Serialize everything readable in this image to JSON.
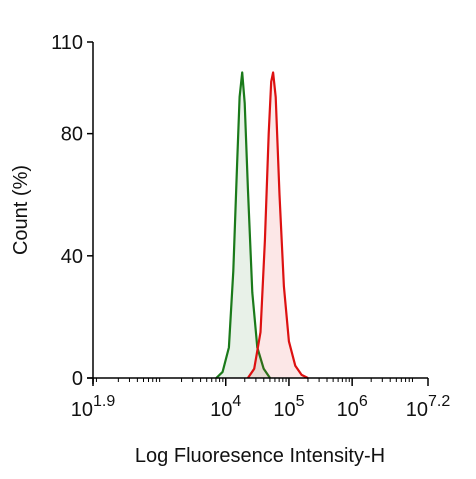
{
  "chart_data": {
    "type": "histogram-overlay",
    "xlabel": "Log Fluoresence Intensity-H",
    "ylabel": "Count  (%)",
    "xscale": "log",
    "log_base_label": "10",
    "xlim": [
      1.9,
      7.2
    ],
    "xticks": [
      {
        "value": 1.9,
        "label": "10"
      },
      {
        "value": 4,
        "label": "10"
      },
      {
        "value": 5,
        "label": "10"
      },
      {
        "value": 6,
        "label": "10"
      },
      {
        "value": 7.2,
        "label": "10"
      }
    ],
    "minor_ticks": true,
    "ylim": [
      0,
      110
    ],
    "yticks": [
      0,
      40,
      80,
      110
    ],
    "series": [
      {
        "color": "#1a7a1a",
        "fill": "rgba(26,122,26,0.10)",
        "x": [
          3.85,
          3.95,
          4.05,
          4.12,
          4.18,
          4.22,
          4.26,
          4.3,
          4.35,
          4.42,
          4.5,
          4.6,
          4.7
        ],
        "values": [
          0,
          2,
          10,
          35,
          70,
          92,
          100,
          90,
          62,
          28,
          10,
          3,
          0
        ]
      },
      {
        "color": "#dd1111",
        "fill": "rgba(221,17,17,0.10)",
        "x": [
          4.35,
          4.45,
          4.55,
          4.62,
          4.68,
          4.72,
          4.75,
          4.79,
          4.85,
          4.92,
          5.0,
          5.1,
          5.2,
          5.3
        ],
        "values": [
          0,
          3,
          15,
          45,
          80,
          97,
          100,
          92,
          60,
          30,
          12,
          4,
          1,
          0
        ]
      }
    ]
  }
}
